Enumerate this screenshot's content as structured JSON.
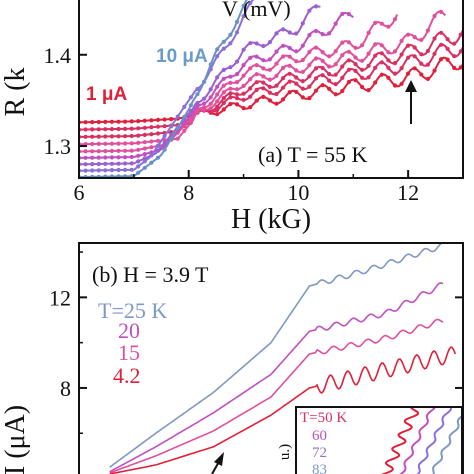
{
  "colors": {
    "red": "#e0203a",
    "crimson": "#d83060",
    "pink": "#e0509c",
    "magenta": "#c050c0",
    "purple": "#9a60d0",
    "violet": "#8a70d8",
    "blue": "#6a90c8",
    "steel": "#7f98c2"
  },
  "chart_data": [
    {
      "type": "line",
      "panel": "a",
      "label": "(a) T = 55 K",
      "xlabel": "H (kG)",
      "ylabel": "R (k",
      "xlim": [
        6,
        13
      ],
      "ylim": [
        1.265,
        1.46
      ],
      "xticks": [
        "6",
        "8",
        "10",
        "12"
      ],
      "yticks": [
        "1.3",
        "1.4"
      ],
      "annotations": {
        "top": "V (mV)",
        "i_high": "10 μA",
        "i_low": "1 μA"
      },
      "arrow_at_x": 12,
      "series": [
        {
          "name": "1 μA",
          "x": [
            6,
            7,
            7.8,
            8.2,
            9,
            10,
            11,
            12,
            12.5,
            13
          ],
          "y": [
            1.326,
            1.327,
            1.33,
            1.335,
            1.345,
            1.356,
            1.366,
            1.375,
            1.385,
            1.395
          ]
        },
        {
          "x": [
            6,
            7,
            7.8,
            8.2,
            9,
            10,
            11,
            12,
            13
          ],
          "y": [
            1.318,
            1.319,
            1.323,
            1.335,
            1.355,
            1.367,
            1.378,
            1.39,
            1.41
          ]
        },
        {
          "x": [
            6,
            7,
            7.8,
            8.2,
            9,
            10,
            11,
            12,
            13
          ],
          "y": [
            1.31,
            1.311,
            1.316,
            1.335,
            1.362,
            1.376,
            1.388,
            1.402,
            1.425
          ]
        },
        {
          "x": [
            6,
            7,
            7.8,
            8.2,
            9,
            10,
            11,
            12,
            12.7
          ],
          "y": [
            1.302,
            1.303,
            1.308,
            1.337,
            1.37,
            1.386,
            1.398,
            1.414,
            1.445
          ]
        },
        {
          "x": [
            6,
            7,
            7.6,
            8.2,
            9,
            10,
            11,
            11.8
          ],
          "y": [
            1.294,
            1.295,
            1.302,
            1.34,
            1.38,
            1.398,
            1.41,
            1.445
          ]
        },
        {
          "x": [
            6,
            7,
            7.5,
            8.2,
            9,
            10,
            11
          ],
          "y": [
            1.287,
            1.288,
            1.296,
            1.345,
            1.39,
            1.41,
            1.445
          ]
        },
        {
          "x": [
            6,
            7,
            7.4,
            8.2,
            9,
            10,
            10.4
          ],
          "y": [
            1.28,
            1.281,
            1.292,
            1.35,
            1.405,
            1.43,
            1.455
          ]
        },
        {
          "x": [
            6,
            7,
            7.3,
            8,
            8.7,
            9.2
          ],
          "y": [
            1.273,
            1.274,
            1.288,
            1.35,
            1.41,
            1.46
          ]
        },
        {
          "name": "10 μA",
          "x": [
            6,
            7,
            7.5,
            8,
            8.5,
            9.1
          ],
          "y": [
            1.266,
            1.267,
            1.29,
            1.34,
            1.4,
            1.46
          ]
        }
      ]
    },
    {
      "type": "line",
      "panel": "b",
      "label": "(b) H = 3.9 T",
      "ylabel": "I (μA)",
      "ylim": [
        4.2,
        14.4
      ],
      "yticks": [
        "8",
        "12"
      ],
      "legend": [
        "T=25 K",
        "20",
        "15",
        "4.2"
      ],
      "series": [
        {
          "name": "T=25 K",
          "x": [
            0.08,
            0.2,
            0.35,
            0.5,
            0.6,
            0.75,
            0.95
          ],
          "y": [
            4.5,
            6.0,
            7.8,
            10.0,
            12.5,
            13.2,
            14.3
          ]
        },
        {
          "name": "20",
          "x": [
            0.08,
            0.2,
            0.35,
            0.5,
            0.6,
            0.8,
            0.95
          ],
          "y": [
            4.3,
            5.4,
            6.9,
            8.6,
            10.5,
            11.3,
            12.6
          ]
        },
        {
          "name": "15",
          "x": [
            0.08,
            0.2,
            0.35,
            0.5,
            0.6,
            0.8,
            0.95
          ],
          "y": [
            4.25,
            5.0,
            6.1,
            7.6,
            9.5,
            10.2,
            11.0
          ]
        },
        {
          "name": "4.2",
          "x": [
            0.08,
            0.2,
            0.35,
            0.5,
            0.6,
            0.8,
            0.98
          ],
          "y": [
            4.2,
            4.6,
            5.4,
            6.8,
            8.0,
            8.8,
            9.5
          ]
        }
      ],
      "inset": {
        "ylabel": "u.)",
        "legend": [
          "T=50 K",
          "60",
          "72",
          "83"
        ]
      }
    }
  ]
}
